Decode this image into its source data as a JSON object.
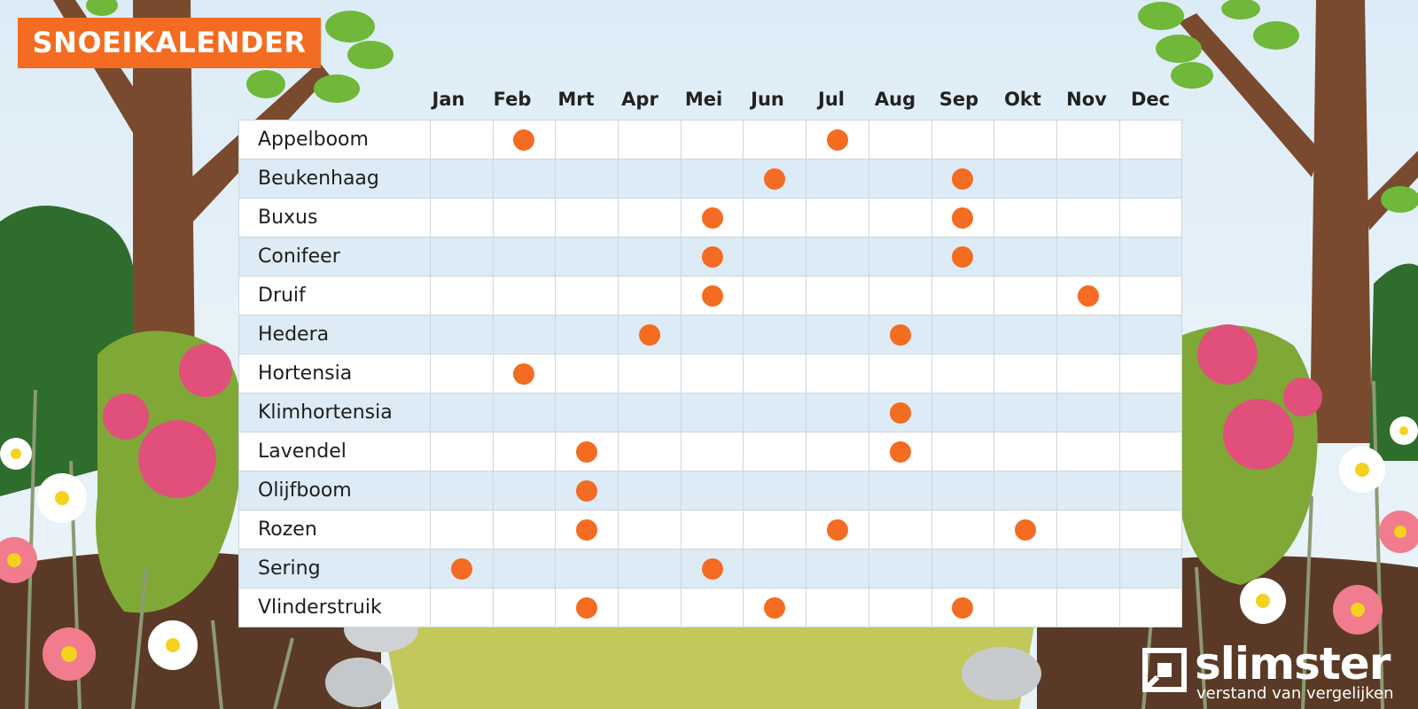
{
  "title": "SNOEIKALENDER",
  "colors": {
    "accent": "#f36c21",
    "row_alt": "#dcebf5",
    "grid_line": "#cfd6dc"
  },
  "brand": {
    "name": "slimster",
    "tagline": "verstand van vergelijken"
  },
  "chart_data": {
    "type": "table",
    "title": "SNOEIKALENDER",
    "columns": [
      "Jan",
      "Feb",
      "Mrt",
      "Apr",
      "Mei",
      "Jun",
      "Jul",
      "Aug",
      "Sep",
      "Okt",
      "Nov",
      "Dec"
    ],
    "rows": [
      {
        "plant": "Appelboom",
        "months": [
          "Feb",
          "Jul"
        ]
      },
      {
        "plant": "Beukenhaag",
        "months": [
          "Jun",
          "Sep"
        ]
      },
      {
        "plant": "Buxus",
        "months": [
          "Mei",
          "Sep"
        ]
      },
      {
        "plant": "Conifeer",
        "months": [
          "Mei",
          "Sep"
        ]
      },
      {
        "plant": "Druif",
        "months": [
          "Mei",
          "Nov"
        ]
      },
      {
        "plant": "Hedera",
        "months": [
          "Apr",
          "Aug"
        ]
      },
      {
        "plant": "Hortensia",
        "months": [
          "Feb"
        ]
      },
      {
        "plant": "Klimhortensia",
        "months": [
          "Aug"
        ]
      },
      {
        "plant": "Lavendel",
        "months": [
          "Mrt",
          "Aug"
        ]
      },
      {
        "plant": "Olijfboom",
        "months": [
          "Mrt"
        ]
      },
      {
        "plant": "Rozen",
        "months": [
          "Mrt",
          "Jul",
          "Okt"
        ]
      },
      {
        "plant": "Sering",
        "months": [
          "Jan",
          "Mei"
        ]
      },
      {
        "plant": "Vlinderstruik",
        "months": [
          "Mrt",
          "Jun",
          "Sep"
        ]
      }
    ]
  }
}
